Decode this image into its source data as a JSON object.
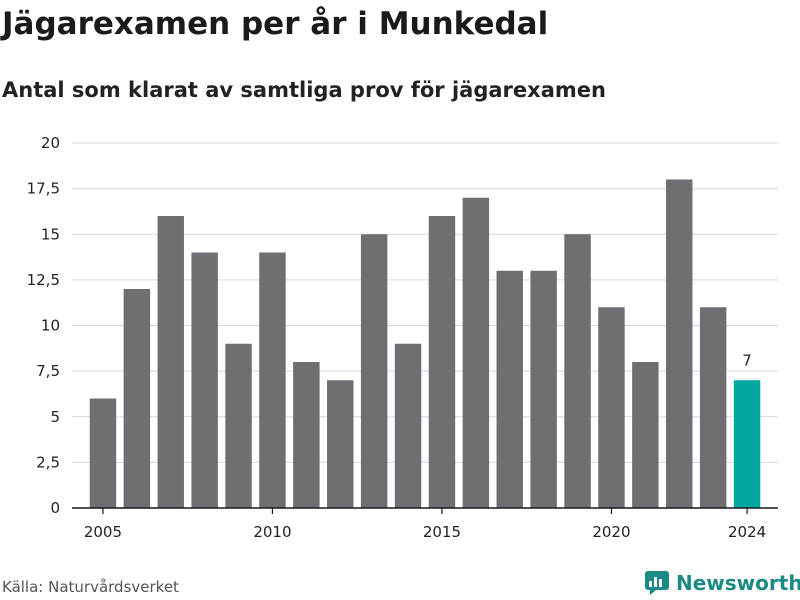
{
  "header": {
    "title": "Jägarexamen per år i Munkedal",
    "subtitle": "Antal som klarat av samtliga prov för jägarexamen"
  },
  "footer": {
    "source": "Källa: Naturvårdsverket",
    "brand": "Newsworthy"
  },
  "colors": {
    "bar": "#6e6e73",
    "highlight": "#00a89d",
    "grid": "#d9d9d9",
    "brand": "#1c8a84"
  },
  "chart_data": {
    "type": "bar",
    "title": "Jägarexamen per år i Munkedal",
    "subtitle": "Antal som klarat av samtliga prov för jägarexamen",
    "xlabel": "",
    "ylabel": "",
    "categories": [
      2005,
      2006,
      2007,
      2008,
      2009,
      2010,
      2011,
      2012,
      2013,
      2014,
      2015,
      2016,
      2017,
      2018,
      2019,
      2020,
      2021,
      2022,
      2023,
      2024
    ],
    "values": [
      6,
      12,
      16,
      14,
      9,
      14,
      8,
      7,
      15,
      9,
      16,
      17,
      13,
      13,
      15,
      11,
      8,
      18,
      11,
      7
    ],
    "highlight_category": 2024,
    "highlight_label": "7",
    "ylim": [
      0,
      20
    ],
    "yticks": [
      0,
      2.5,
      5,
      7.5,
      10,
      12.5,
      15,
      17.5,
      20
    ],
    "ytick_labels": [
      "0",
      "2,5",
      "5",
      "7,5",
      "10",
      "12,5",
      "15",
      "17,5",
      "20"
    ],
    "xticks": [
      2005,
      2010,
      2015,
      2020,
      2024
    ],
    "xtick_labels": [
      "2005",
      "2010",
      "2015",
      "2020",
      "2024"
    ],
    "grid": true,
    "legend": "none"
  }
}
